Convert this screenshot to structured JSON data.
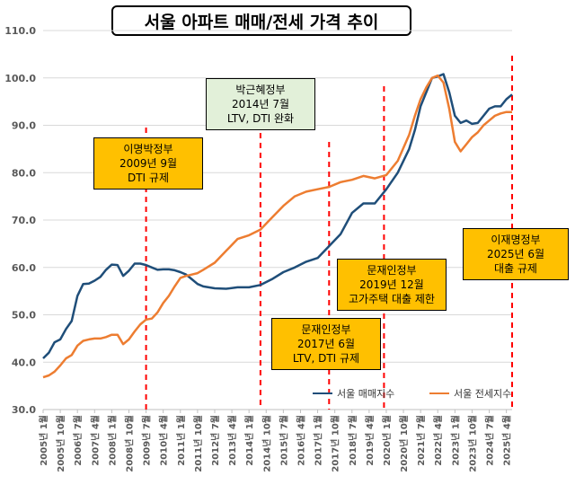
{
  "chart_data": {
    "type": "line",
    "title": "서울 아파트 매매/전세 가격 추이",
    "ylim": [
      30,
      110
    ],
    "yticks": [
      "110.0",
      "100.0",
      "90.0",
      "80.0",
      "70.0",
      "60.0",
      "50.0",
      "40.0",
      "30.0"
    ],
    "xticks": [
      "2005년 1월",
      "2005년 10월",
      "2006년 7월",
      "2007년 4월",
      "2008년 1월",
      "2008년 10월",
      "2009년 7월",
      "2010년 4월",
      "2011년 1월",
      "2011년 10월",
      "2012년 7월",
      "2013년 4월",
      "2014년 1월",
      "2014년 10월",
      "2015년 7월",
      "2016년 4월",
      "2017년 1월",
      "2017년 10월",
      "2018년 7월",
      "2019년 4월",
      "2020년 1월",
      "2020년 10월",
      "2021년 7월",
      "2022년 4월",
      "2023년 1월",
      "2023년 10월",
      "2024년 7월",
      "2025년 4월"
    ],
    "colors": {
      "sale": "#1f4e79",
      "jeonse": "#ed7d31",
      "event_line": "#ff0000"
    },
    "grid": "horizontal",
    "legend_position": "bottom-right",
    "series": [
      {
        "name": "서울 매매지수",
        "color": "#1f4e79",
        "x": [
          2005.0,
          2005.25,
          2005.5,
          2005.75,
          2006.0,
          2006.25,
          2006.5,
          2006.75,
          2007.0,
          2007.25,
          2007.5,
          2007.75,
          2008.0,
          2008.25,
          2008.5,
          2008.75,
          2009.0,
          2009.25,
          2009.5,
          2009.75,
          2010.0,
          2010.25,
          2010.5,
          2010.75,
          2011.0,
          2011.25,
          2011.5,
          2011.75,
          2012.0,
          2012.5,
          2013.0,
          2013.5,
          2014.0,
          2014.5,
          2015.0,
          2015.5,
          2016.0,
          2016.5,
          2017.0,
          2017.5,
          2018.0,
          2018.5,
          2019.0,
          2019.5,
          2020.0,
          2020.5,
          2021.0,
          2021.25,
          2021.5,
          2021.75,
          2022.0,
          2022.25,
          2022.5,
          2022.75,
          2023.0,
          2023.25,
          2023.5,
          2023.75,
          2024.0,
          2024.25,
          2024.5,
          2024.75,
          2025.0,
          2025.25,
          2025.5
        ],
        "values": [
          40.8,
          42.0,
          44.2,
          44.8,
          47.0,
          48.7,
          54.0,
          56.5,
          56.6,
          57.2,
          58.0,
          59.5,
          60.6,
          60.5,
          58.2,
          59.3,
          60.8,
          60.8,
          60.5,
          60.0,
          59.5,
          59.6,
          59.6,
          59.4,
          59.0,
          58.5,
          57.5,
          56.5,
          56.0,
          55.6,
          55.5,
          55.8,
          55.8,
          56.3,
          57.5,
          59.0,
          60.0,
          61.2,
          62.0,
          64.5,
          67.0,
          71.5,
          73.5,
          73.5,
          76.5,
          80.0,
          85.0,
          89.0,
          94.0,
          97.0,
          100.0,
          100.3,
          100.8,
          97.0,
          92.0,
          90.5,
          91.0,
          90.3,
          90.5,
          92.0,
          93.5,
          94.0,
          94.0,
          95.5,
          96.5
        ]
      },
      {
        "name": "서울 전세지수",
        "color": "#ed7d31",
        "x": [
          2005.0,
          2005.25,
          2005.5,
          2005.75,
          2006.0,
          2006.25,
          2006.5,
          2006.75,
          2007.0,
          2007.25,
          2007.5,
          2007.75,
          2008.0,
          2008.25,
          2008.5,
          2008.75,
          2009.0,
          2009.25,
          2009.5,
          2009.75,
          2010.0,
          2010.25,
          2010.5,
          2010.75,
          2011.0,
          2011.25,
          2011.5,
          2011.75,
          2012.0,
          2012.5,
          2013.0,
          2013.5,
          2014.0,
          2014.5,
          2015.0,
          2015.5,
          2016.0,
          2016.5,
          2017.0,
          2017.5,
          2018.0,
          2018.5,
          2019.0,
          2019.5,
          2020.0,
          2020.5,
          2021.0,
          2021.25,
          2021.5,
          2021.75,
          2022.0,
          2022.25,
          2022.5,
          2022.75,
          2023.0,
          2023.25,
          2023.5,
          2023.75,
          2024.0,
          2024.25,
          2024.5,
          2024.75,
          2025.0,
          2025.25,
          2025.5
        ],
        "values": [
          36.8,
          37.2,
          38.0,
          39.3,
          40.8,
          41.5,
          43.5,
          44.5,
          44.8,
          45.0,
          45.0,
          45.3,
          45.8,
          45.8,
          43.8,
          44.8,
          46.5,
          48.0,
          49.0,
          49.2,
          50.5,
          52.5,
          54.0,
          56.0,
          57.8,
          58.2,
          58.5,
          58.8,
          59.5,
          61.0,
          63.5,
          66.0,
          66.8,
          68.0,
          70.5,
          73.0,
          75.0,
          76.0,
          76.5,
          77.0,
          78.0,
          78.5,
          79.3,
          78.8,
          79.5,
          82.5,
          88.0,
          92.0,
          95.5,
          98.0,
          100.0,
          100.5,
          99.0,
          93.5,
          86.5,
          84.5,
          86.0,
          87.5,
          88.5,
          90.0,
          91.0,
          92.0,
          92.5,
          92.8,
          92.8
        ]
      }
    ],
    "events": [
      {
        "x": 2009.5,
        "lines": [
          "이명박정부",
          "2009년 9월",
          "DTI 규제"
        ],
        "style": "orange"
      },
      {
        "x": 2014.5,
        "lines": [
          "박근혜정부",
          "2014년 7월",
          "LTV, DTI 완화"
        ],
        "style": "green"
      },
      {
        "x": 2017.5,
        "lines": [
          "문재인정부",
          "2017년 6월",
          "LTV, DTI 규제"
        ],
        "style": "orange"
      },
      {
        "x": 2019.9,
        "lines": [
          "문재인정부",
          "2019년 12월",
          "고가주택 대출 제한"
        ],
        "style": "orange"
      },
      {
        "x": 2025.5,
        "lines": [
          "이재명정부",
          "2025년 6월",
          "대출 규제"
        ],
        "style": "orange"
      }
    ]
  }
}
